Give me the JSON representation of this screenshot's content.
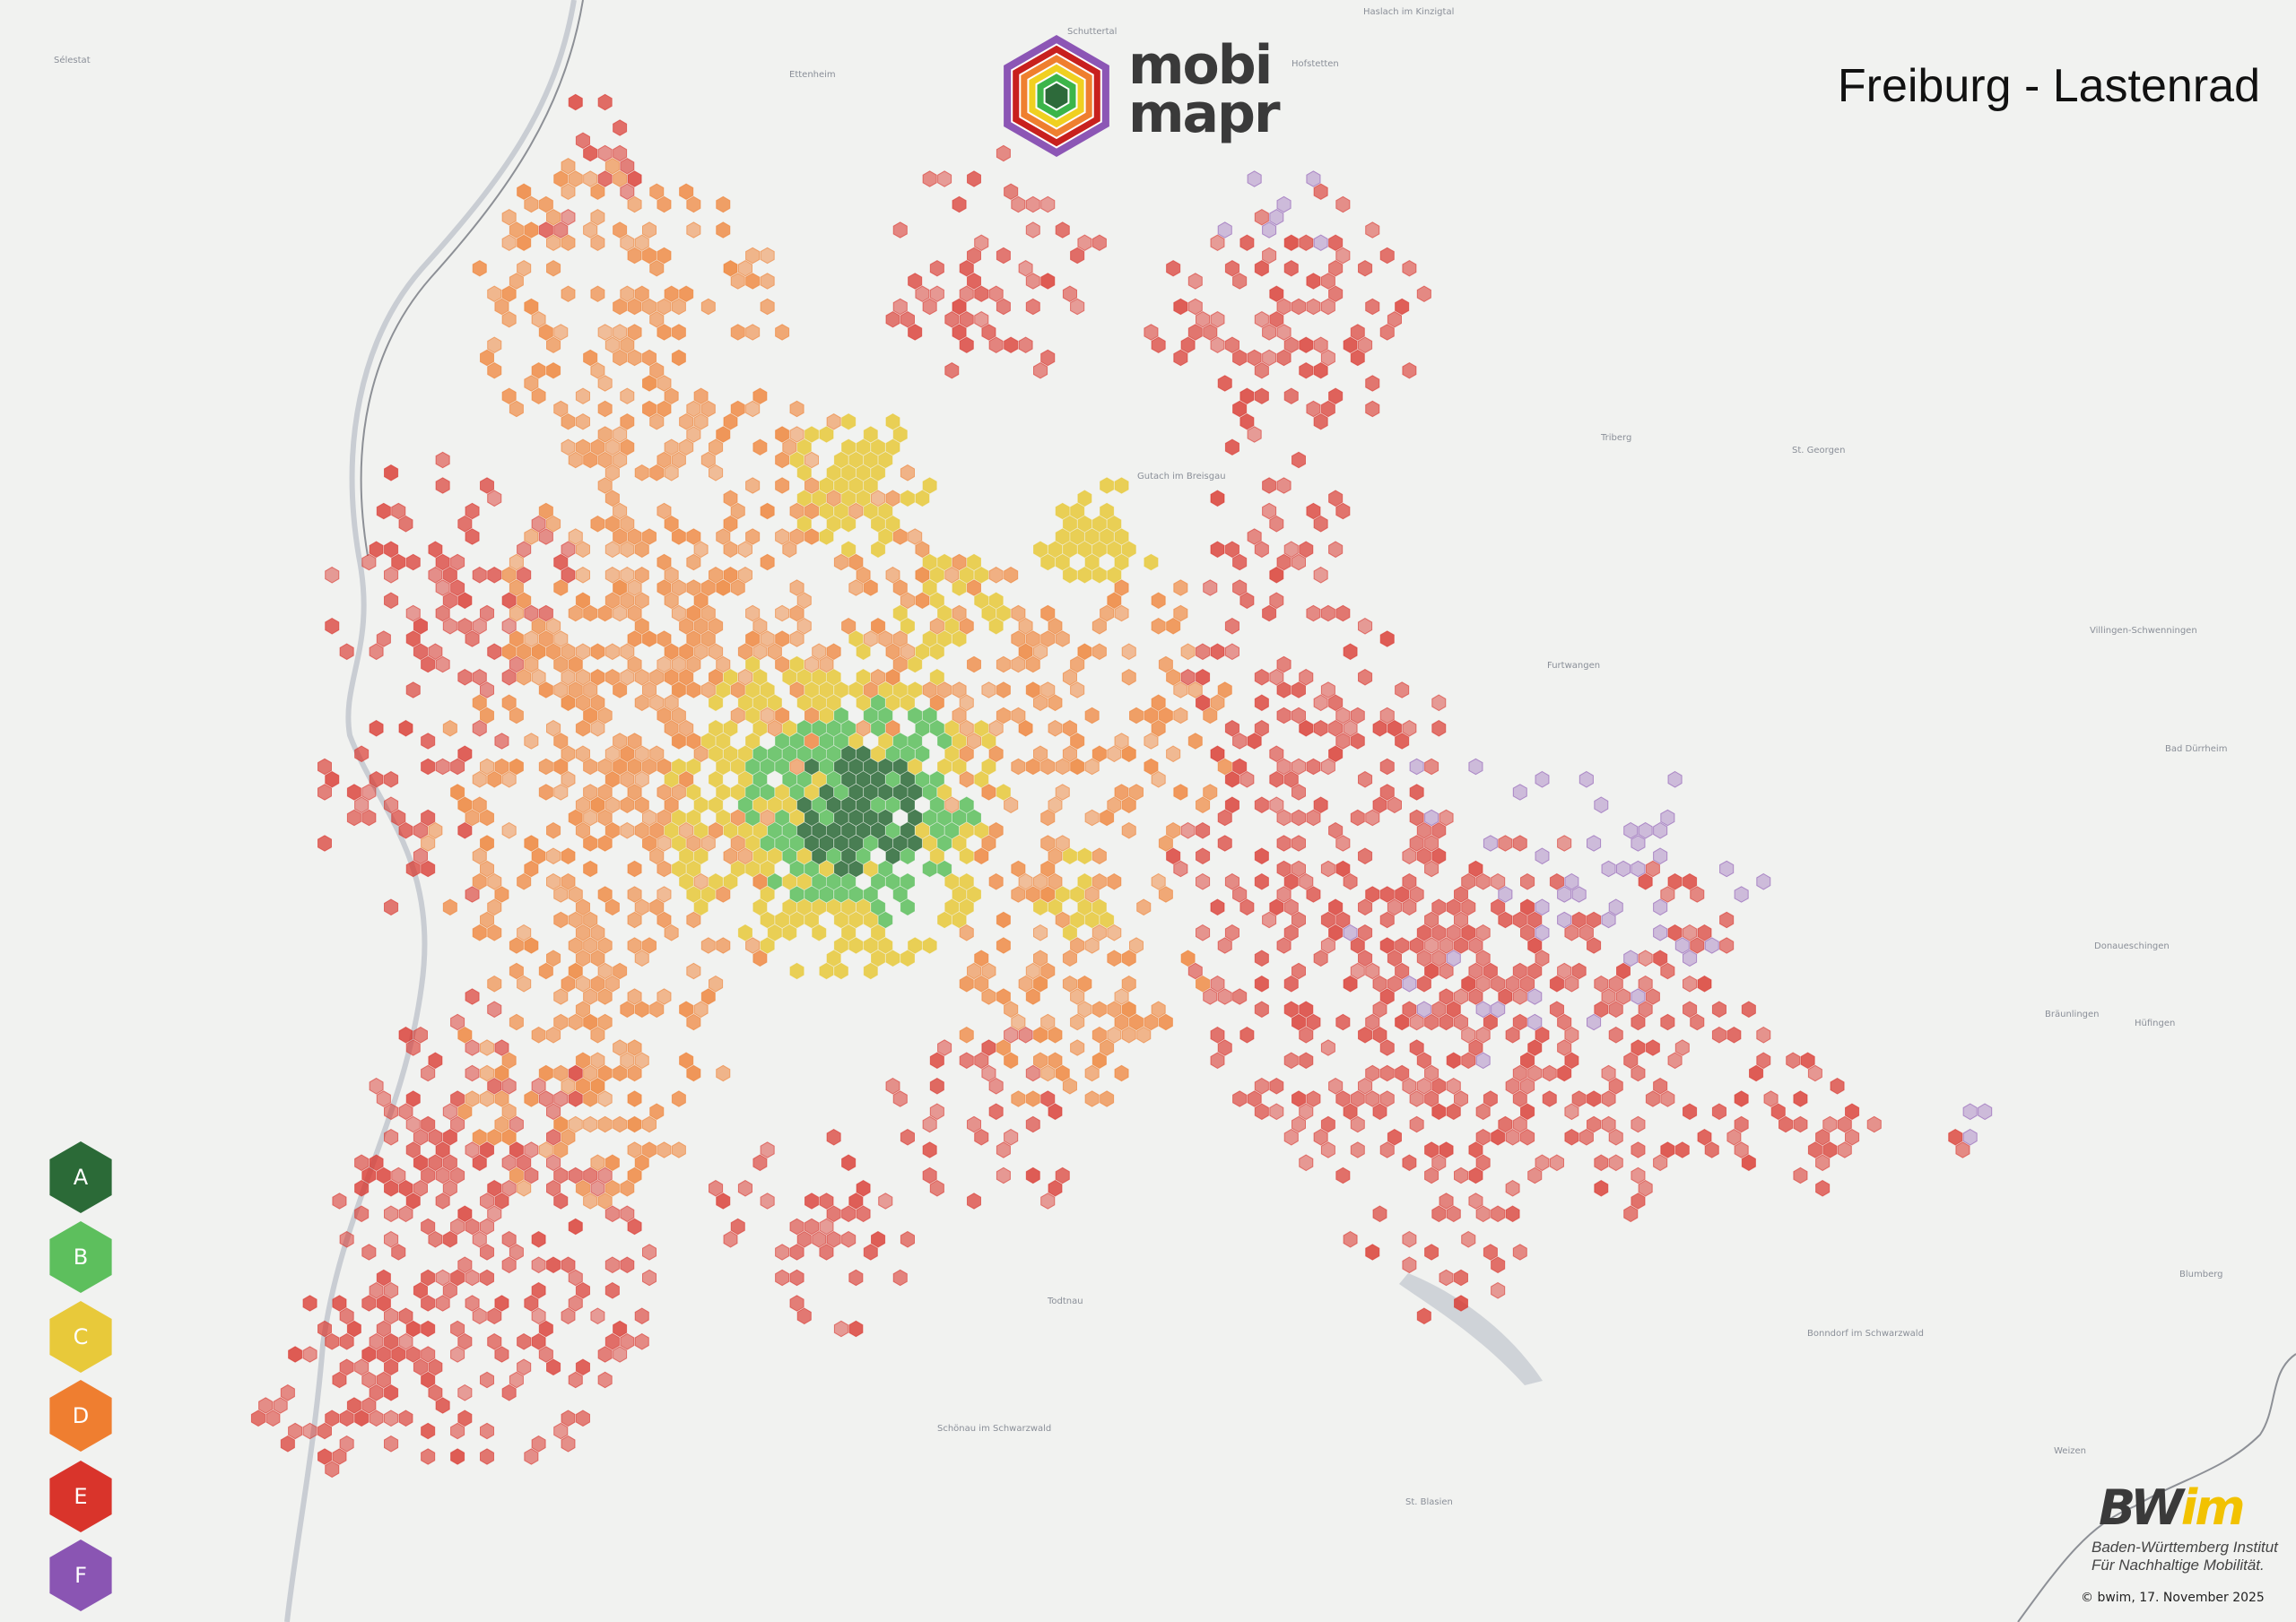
{
  "title": "Freiburg - Lastenrad",
  "logo": {
    "line1": "mobi",
    "line2": "mapr",
    "ring_colors": [
      "#8c56b5",
      "#c8201e",
      "#ef7f2f",
      "#f0d020",
      "#3cb54a",
      "#2d6a3a"
    ]
  },
  "legend": [
    {
      "label": "A",
      "color": "#2b6a37"
    },
    {
      "label": "B",
      "color": "#5dbf5d"
    },
    {
      "label": "C",
      "color": "#e8c93a"
    },
    {
      "label": "D",
      "color": "#ef7e30"
    },
    {
      "label": "E",
      "color": "#d9342b"
    },
    {
      "label": "F",
      "color": "#8a55b3"
    }
  ],
  "places": [
    {
      "name": "Sélestat"
    },
    {
      "name": "Ettenheim"
    },
    {
      "name": "Schuttertal"
    },
    {
      "name": "Hofstetten"
    },
    {
      "name": "Haslach im Kinzigtal"
    },
    {
      "name": "Triberg"
    },
    {
      "name": "St. Georgen"
    },
    {
      "name": "Furtwangen"
    },
    {
      "name": "Villingen-Schwenningen"
    },
    {
      "name": "Bad Dürrheim"
    },
    {
      "name": "Donaueschingen"
    },
    {
      "name": "Hüfingen"
    },
    {
      "name": "Bräunlingen"
    },
    {
      "name": "Blumberg"
    },
    {
      "name": "Bonndorf im Schwarzwald"
    },
    {
      "name": "St. Blasien"
    },
    {
      "name": "Todtnau"
    },
    {
      "name": "Schönau im Schwarzwald"
    },
    {
      "name": "Gutach im Breisgau"
    },
    {
      "name": "Weizen"
    }
  ],
  "credits": {
    "brand": "BWIM",
    "line1": "Baden-Württemberg Institut",
    "line2": "Für Nachhaltige Mobilität.",
    "copyright": "© bwim, 17. November 2025"
  }
}
